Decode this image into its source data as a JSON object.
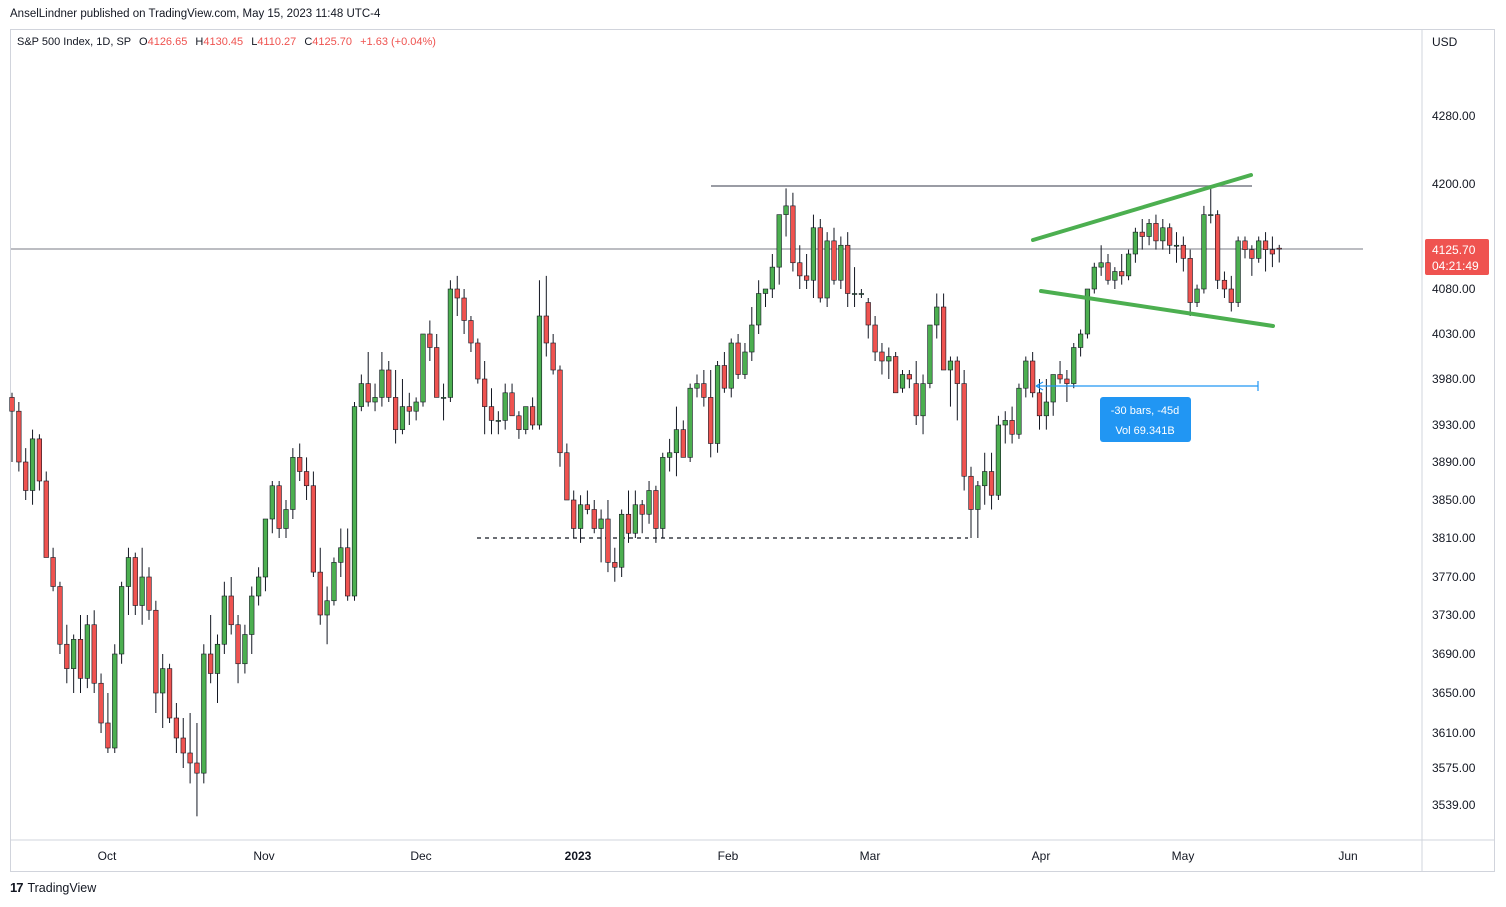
{
  "header": {
    "publish_line": "AnselLindner published on TradingView.com, May 15, 2023 11:48 UTC-4"
  },
  "legend": {
    "symbol": "S&P 500 Index, 1D, SP",
    "o_label": "O",
    "o_value": "4126.65",
    "h_label": "H",
    "h_value": "4130.45",
    "l_label": "L",
    "l_value": "4110.27",
    "c_label": "C",
    "c_value": "4125.70",
    "change": "+1.63 (+0.04%)"
  },
  "footer": {
    "brand": "TradingView"
  },
  "colors": {
    "up": "#4caf50",
    "down": "#ef5350",
    "wick": "#131722",
    "pattern_line": "#4caf50",
    "measure": "#2196f3",
    "price_badge": "#ef5350"
  },
  "chart_data": {
    "type": "candlestick",
    "title": "S&P 500 Index, 1D, SP",
    "currency_label": "USD",
    "y_ticks": [
      "4280.00",
      "4200.00",
      "4080.00",
      "4030.00",
      "3980.00",
      "3930.00",
      "3890.00",
      "3850.00",
      "3810.00",
      "3770.00",
      "3730.00",
      "3690.00",
      "3650.00",
      "3610.00",
      "3575.00",
      "3539.00"
    ],
    "x_ticks": [
      "Oct",
      "Nov",
      "Dec",
      "2023",
      "Feb",
      "Mar",
      "Apr",
      "May",
      "Jun"
    ],
    "last_price": "4125.70",
    "countdown": "04:21:49",
    "measure_label": "-30 bars, -45d",
    "measure_volume": "Vol 69.341B",
    "resistance_level": 4195,
    "support_level": 3808,
    "last_price_value": 4125.7,
    "candles_ohlc": [
      [
        3960,
        3965,
        3890,
        3945
      ],
      [
        3945,
        3955,
        3880,
        3890
      ],
      [
        3890,
        3905,
        3850,
        3860
      ],
      [
        3860,
        3925,
        3845,
        3915
      ],
      [
        3915,
        3920,
        3860,
        3870
      ],
      [
        3870,
        3880,
        3790,
        3790
      ],
      [
        3790,
        3800,
        3755,
        3760
      ],
      [
        3760,
        3765,
        3690,
        3700
      ],
      [
        3700,
        3720,
        3660,
        3675
      ],
      [
        3675,
        3710,
        3650,
        3705
      ],
      [
        3705,
        3730,
        3650,
        3665
      ],
      [
        3665,
        3730,
        3655,
        3720
      ],
      [
        3720,
        3735,
        3650,
        3660
      ],
      [
        3660,
        3670,
        3610,
        3620
      ],
      [
        3620,
        3650,
        3590,
        3595
      ],
      [
        3595,
        3700,
        3590,
        3690
      ],
      [
        3690,
        3765,
        3680,
        3760
      ],
      [
        3760,
        3800,
        3730,
        3790
      ],
      [
        3790,
        3795,
        3730,
        3740
      ],
      [
        3740,
        3800,
        3720,
        3770
      ],
      [
        3770,
        3780,
        3725,
        3735
      ],
      [
        3735,
        3745,
        3630,
        3650
      ],
      [
        3650,
        3690,
        3615,
        3675
      ],
      [
        3675,
        3680,
        3620,
        3625
      ],
      [
        3625,
        3640,
        3590,
        3605
      ],
      [
        3605,
        3625,
        3575,
        3590
      ],
      [
        3590,
        3630,
        3560,
        3580
      ],
      [
        3580,
        3620,
        3528,
        3570
      ],
      [
        3570,
        3700,
        3560,
        3690
      ],
      [
        3690,
        3730,
        3660,
        3670
      ],
      [
        3670,
        3710,
        3640,
        3700
      ],
      [
        3700,
        3765,
        3690,
        3750
      ],
      [
        3750,
        3770,
        3710,
        3720
      ],
      [
        3720,
        3730,
        3660,
        3680
      ],
      [
        3680,
        3720,
        3670,
        3710
      ],
      [
        3710,
        3760,
        3690,
        3750
      ],
      [
        3750,
        3780,
        3740,
        3770
      ],
      [
        3770,
        3830,
        3755,
        3830
      ],
      [
        3830,
        3870,
        3815,
        3865
      ],
      [
        3865,
        3870,
        3810,
        3820
      ],
      [
        3820,
        3850,
        3810,
        3840
      ],
      [
        3840,
        3905,
        3830,
        3895
      ],
      [
        3895,
        3910,
        3870,
        3880
      ],
      [
        3880,
        3895,
        3850,
        3865
      ],
      [
        3865,
        3880,
        3770,
        3775
      ],
      [
        3775,
        3800,
        3720,
        3730
      ],
      [
        3730,
        3760,
        3700,
        3745
      ],
      [
        3745,
        3790,
        3740,
        3785
      ],
      [
        3785,
        3820,
        3770,
        3800
      ],
      [
        3800,
        3820,
        3745,
        3750
      ],
      [
        3750,
        3955,
        3745,
        3950
      ],
      [
        3950,
        3985,
        3945,
        3975
      ],
      [
        3975,
        4010,
        3950,
        3955
      ],
      [
        3955,
        3975,
        3945,
        3960
      ],
      [
        3960,
        4010,
        3950,
        3990
      ],
      [
        3990,
        4000,
        3955,
        3960
      ],
      [
        3960,
        3990,
        3910,
        3925
      ],
      [
        3925,
        3980,
        3920,
        3950
      ],
      [
        3950,
        3965,
        3930,
        3945
      ],
      [
        3945,
        3960,
        3935,
        3955
      ],
      [
        3955,
        4030,
        3950,
        4030
      ],
      [
        4030,
        4045,
        4000,
        4015
      ],
      [
        4015,
        4030,
        3960,
        3960
      ],
      [
        3960,
        3975,
        3935,
        3960
      ],
      [
        3960,
        4090,
        3955,
        4080
      ],
      [
        4080,
        4095,
        4050,
        4070
      ],
      [
        4070,
        4080,
        4030,
        4045
      ],
      [
        4045,
        4050,
        4010,
        4020
      ],
      [
        4020,
        4025,
        3975,
        3980
      ],
      [
        3980,
        4000,
        3920,
        3950
      ],
      [
        3950,
        3970,
        3920,
        3935
      ],
      [
        3935,
        3945,
        3920,
        3935
      ],
      [
        3935,
        3975,
        3925,
        3965
      ],
      [
        3965,
        3975,
        3940,
        3940
      ],
      [
        3940,
        3945,
        3915,
        3925
      ],
      [
        3925,
        3950,
        3920,
        3950
      ],
      [
        3950,
        3960,
        3925,
        3930
      ],
      [
        3930,
        4090,
        3925,
        4050
      ],
      [
        4050,
        4095,
        4005,
        4020
      ],
      [
        4020,
        4030,
        3985,
        3990
      ],
      [
        3990,
        3995,
        3885,
        3900
      ],
      [
        3900,
        3910,
        3850,
        3850
      ],
      [
        3850,
        3860,
        3810,
        3820
      ],
      [
        3820,
        3855,
        3805,
        3845
      ],
      [
        3845,
        3860,
        3835,
        3840
      ],
      [
        3840,
        3850,
        3815,
        3820
      ],
      [
        3820,
        3840,
        3785,
        3830
      ],
      [
        3830,
        3850,
        3775,
        3785
      ],
      [
        3785,
        3800,
        3765,
        3780
      ],
      [
        3780,
        3840,
        3770,
        3835
      ],
      [
        3835,
        3860,
        3805,
        3815
      ],
      [
        3815,
        3860,
        3810,
        3845
      ],
      [
        3845,
        3850,
        3815,
        3835
      ],
      [
        3835,
        3870,
        3825,
        3860
      ],
      [
        3860,
        3865,
        3805,
        3820
      ],
      [
        3820,
        3900,
        3810,
        3895
      ],
      [
        3895,
        3915,
        3880,
        3900
      ],
      [
        3900,
        3950,
        3875,
        3925
      ],
      [
        3925,
        3935,
        3895,
        3895
      ],
      [
        3895,
        3975,
        3890,
        3970
      ],
      [
        3970,
        3985,
        3960,
        3975
      ],
      [
        3975,
        3990,
        3950,
        3960
      ],
      [
        3960,
        3990,
        3895,
        3910
      ],
      [
        3910,
        4000,
        3900,
        3995
      ],
      [
        3995,
        4010,
        3965,
        3970
      ],
      [
        3970,
        4025,
        3960,
        4020
      ],
      [
        4020,
        4030,
        3980,
        3985
      ],
      [
        3985,
        4020,
        3980,
        4010
      ],
      [
        4010,
        4060,
        4000,
        4040
      ],
      [
        4040,
        4090,
        4030,
        4075
      ],
      [
        4075,
        4080,
        4060,
        4080
      ],
      [
        4080,
        4120,
        4070,
        4105
      ],
      [
        4105,
        4165,
        4085,
        4165
      ],
      [
        4165,
        4195,
        4140,
        4175
      ],
      [
        4175,
        4190,
        4100,
        4110
      ],
      [
        4110,
        4130,
        4080,
        4095
      ],
      [
        4095,
        4120,
        4080,
        4090
      ],
      [
        4090,
        4165,
        4070,
        4150
      ],
      [
        4150,
        4160,
        4065,
        4070
      ],
      [
        4070,
        4145,
        4060,
        4135
      ],
      [
        4135,
        4150,
        4085,
        4090
      ],
      [
        4090,
        4140,
        4080,
        4130
      ],
      [
        4130,
        4145,
        4060,
        4075
      ],
      [
        4075,
        4105,
        4060,
        4075
      ],
      [
        4075,
        4080,
        4070,
        4075
      ],
      [
        4065,
        4070,
        4025,
        4040
      ],
      [
        4040,
        4050,
        4000,
        4010
      ],
      [
        4010,
        4020,
        3985,
        4000
      ],
      [
        4000,
        4015,
        3980,
        4005
      ],
      [
        4005,
        4010,
        3965,
        3965
      ],
      [
        3970,
        3990,
        3965,
        3985
      ],
      [
        3985,
        3990,
        3970,
        3980
      ],
      [
        3975,
        4000,
        3930,
        3940
      ],
      [
        3940,
        3985,
        3920,
        3975
      ],
      [
        3975,
        4040,
        3970,
        4040
      ],
      [
        4040,
        4075,
        4025,
        4060
      ],
      [
        4060,
        4075,
        3990,
        3990
      ],
      [
        3990,
        4005,
        3950,
        4000
      ],
      [
        4000,
        4005,
        3935,
        3975
      ],
      [
        3975,
        3990,
        3860,
        3875
      ],
      [
        3875,
        3885,
        3810,
        3840
      ],
      [
        3840,
        3870,
        3810,
        3865
      ],
      [
        3865,
        3900,
        3845,
        3880
      ],
      [
        3880,
        3900,
        3840,
        3855
      ],
      [
        3855,
        3940,
        3850,
        3930
      ],
      [
        3930,
        3945,
        3910,
        3935
      ],
      [
        3935,
        3950,
        3910,
        3920
      ],
      [
        3920,
        3975,
        3915,
        3970
      ],
      [
        3970,
        4005,
        3960,
        4000
      ],
      [
        4000,
        4010,
        3960,
        3965
      ],
      [
        3965,
        3980,
        3925,
        3940
      ],
      [
        3940,
        3980,
        3925,
        3955
      ],
      [
        3955,
        3985,
        3940,
        3985
      ],
      [
        3985,
        4000,
        3975,
        3980
      ],
      [
        3980,
        3990,
        3955,
        3975
      ],
      [
        3975,
        4020,
        3970,
        4015
      ],
      [
        4015,
        4035,
        4005,
        4030
      ],
      [
        4030,
        4080,
        4025,
        4080
      ],
      [
        4080,
        4110,
        4075,
        4105
      ],
      [
        4105,
        4130,
        4095,
        4110
      ],
      [
        4110,
        4120,
        4085,
        4090
      ],
      [
        4090,
        4105,
        4080,
        4100
      ],
      [
        4100,
        4120,
        4085,
        4095
      ],
      [
        4095,
        4125,
        4090,
        4120
      ],
      [
        4120,
        4150,
        4110,
        4145
      ],
      [
        4145,
        4160,
        4125,
        4140
      ],
      [
        4140,
        4160,
        4130,
        4155
      ],
      [
        4155,
        4165,
        4125,
        4135
      ],
      [
        4135,
        4160,
        4125,
        4150
      ],
      [
        4150,
        4155,
        4120,
        4130
      ],
      [
        4130,
        4145,
        4110,
        4130
      ],
      [
        4130,
        4140,
        4100,
        4115
      ],
      [
        4115,
        4125,
        4050,
        4065
      ],
      [
        4065,
        4085,
        4060,
        4080
      ],
      [
        4080,
        4175,
        4075,
        4165
      ],
      [
        4165,
        4195,
        4155,
        4165
      ],
      [
        4165,
        4170,
        4080,
        4090
      ],
      [
        4090,
        4100,
        4070,
        4080
      ],
      [
        4080,
        4095,
        4055,
        4065
      ],
      [
        4065,
        4140,
        4060,
        4135
      ],
      [
        4135,
        4140,
        4115,
        4125
      ],
      [
        4125,
        4130,
        4095,
        4115
      ],
      [
        4115,
        4140,
        4110,
        4135
      ],
      [
        4135,
        4145,
        4100,
        4125
      ],
      [
        4125,
        4140,
        4105,
        4120
      ],
      [
        4126.65,
        4130.45,
        4110.27,
        4125.7
      ]
    ]
  }
}
